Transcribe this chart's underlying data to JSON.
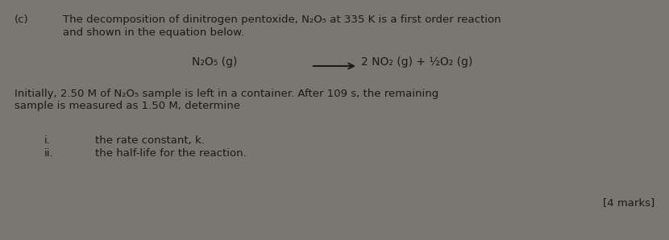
{
  "background_color": "#7a7670",
  "label_c": "(c)",
  "line1": "The decomposition of dinitrogen pentoxide, N₂O₅ at 335 K is a first order reaction",
  "line2": "and shown in the equation below.",
  "equation_left": "N₂O₅ (g)",
  "equation_right": "2 NO₂ (g) + ½O₂ (g)",
  "para1_line1": "Initially, 2.50 M of N₂O₅ sample is left in a container. After 109 s, the remaining",
  "para1_line2": "sample is measured as 1.50 M, determine",
  "item_i_label": "i.",
  "item_i_text": "the rate constant, k.",
  "item_ii_label": "ii.",
  "item_ii_text": "the half-life for the reaction.",
  "marks": "[4 marks]",
  "font_size_body": 9.5,
  "font_size_equation": 10,
  "text_color": "#1a1a1a"
}
